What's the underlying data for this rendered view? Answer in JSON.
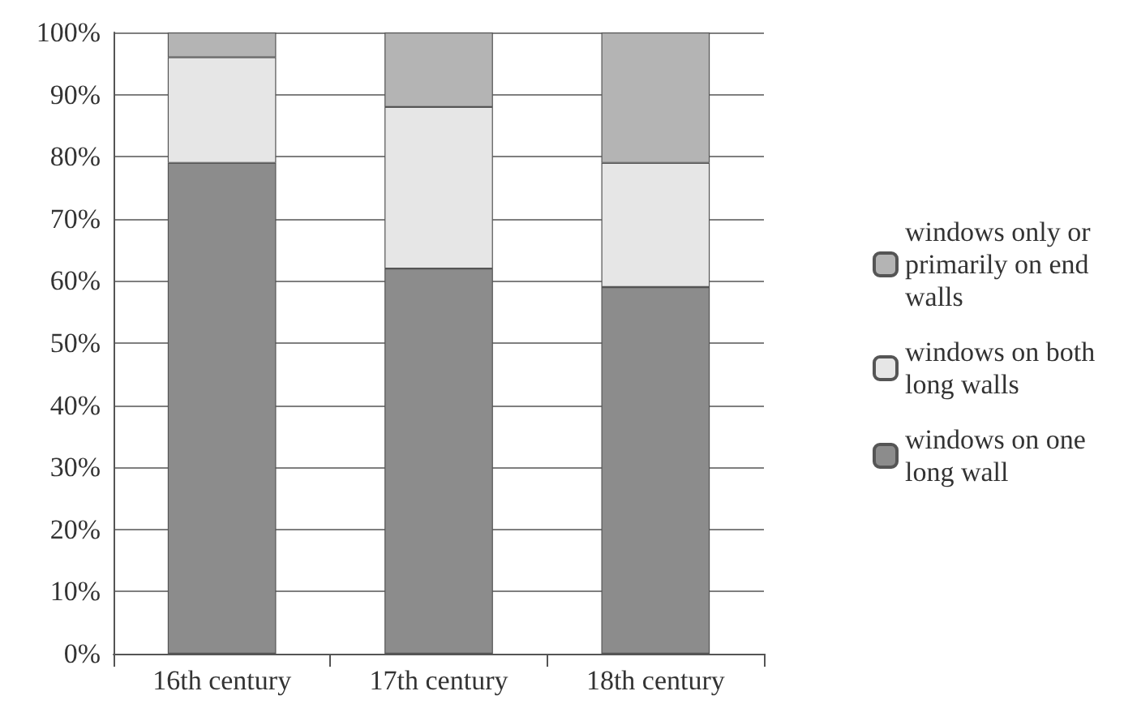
{
  "chart_data": {
    "type": "bar",
    "stacked": true,
    "categories": [
      "16th century",
      "17th century",
      "18th century"
    ],
    "series": [
      {
        "name": "windows on one long wall",
        "color": "#8c8c8c",
        "values": [
          79,
          62,
          59
        ]
      },
      {
        "name": "windows on both long walls",
        "color": "#e6e6e6",
        "values": [
          17,
          26,
          20
        ]
      },
      {
        "name": "windows only or primarily on end walls",
        "color": "#b4b4b4",
        "values": [
          4,
          12,
          21
        ]
      }
    ],
    "ylim": [
      0,
      100
    ],
    "yticks": [
      {
        "value": 0,
        "label": "0%"
      },
      {
        "value": 10,
        "label": "10%"
      },
      {
        "value": 20,
        "label": "20%"
      },
      {
        "value": 30,
        "label": "30%"
      },
      {
        "value": 40,
        "label": "40%"
      },
      {
        "value": 50,
        "label": "50%"
      },
      {
        "value": 60,
        "label": "60%"
      },
      {
        "value": 70,
        "label": "70%"
      },
      {
        "value": 80,
        "label": "80%"
      },
      {
        "value": 90,
        "label": "90%"
      },
      {
        "value": 100,
        "label": "100%"
      }
    ],
    "grid": "y",
    "legend": "right"
  }
}
